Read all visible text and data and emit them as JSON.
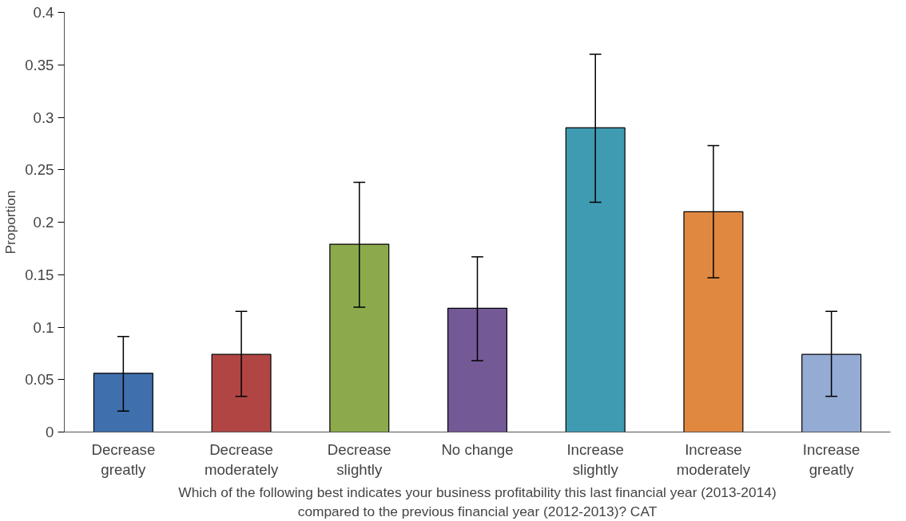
{
  "chart_data": {
    "type": "bar",
    "ylabel": "Proportion",
    "xlabel": "Which of the following best indicates your business profitability this last financial year (2013-2014) compared to the previous financial year (2012-2013)? CAT",
    "categories": [
      "Decrease greatly",
      "Decrease moderately",
      "Decrease slightly",
      "No change",
      "Increase slightly",
      "Increase moderately",
      "Increase greatly"
    ],
    "values": [
      0.056,
      0.074,
      0.179,
      0.118,
      0.29,
      0.21,
      0.074
    ],
    "errors": [
      [
        0.02,
        0.091
      ],
      [
        0.034,
        0.115
      ],
      [
        0.119,
        0.238
      ],
      [
        0.068,
        0.167
      ],
      [
        0.219,
        0.36
      ],
      [
        0.147,
        0.273
      ],
      [
        0.034,
        0.115
      ]
    ],
    "colors": [
      "#3f6fad",
      "#b04544",
      "#8caa4c",
      "#735a97",
      "#3f9bb2",
      "#e08840",
      "#94abd3"
    ],
    "ylim": [
      0,
      0.4
    ],
    "yticks": [
      0,
      0.05,
      0.1,
      0.15,
      0.2,
      0.25,
      0.3,
      0.35,
      0.4
    ],
    "grid": false
  }
}
